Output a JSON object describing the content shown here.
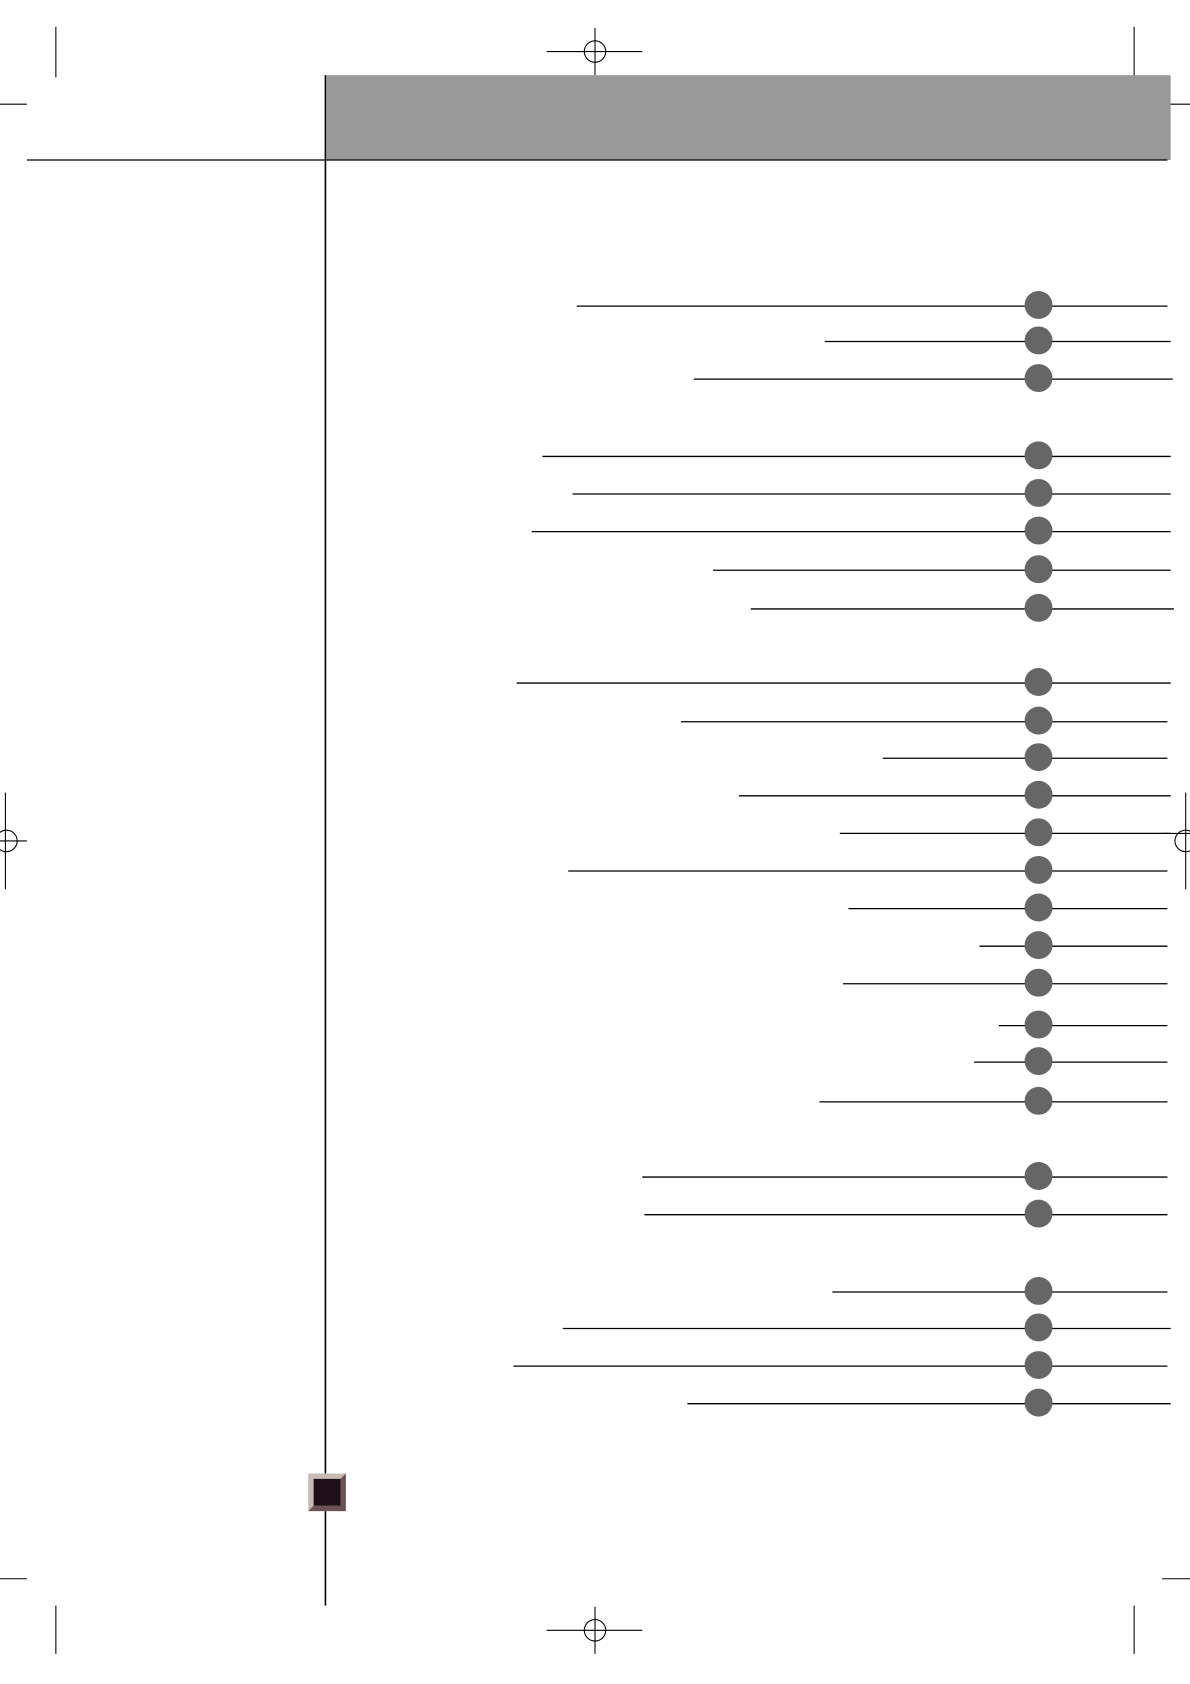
{
  "colors": {
    "header_bar": "#999999",
    "entry_dot": "#666666",
    "rule": "#000000",
    "page_marker_fill": "#1e1018",
    "page_marker_bevel_light": "#c8bab4",
    "page_marker_bevel_dark": "#6a5256"
  },
  "toc": {
    "groups": [
      {
        "entries": 3
      },
      {
        "entries": 5
      },
      {
        "entries": 12
      },
      {
        "entries": 2
      },
      {
        "entries": 4
      }
    ]
  }
}
